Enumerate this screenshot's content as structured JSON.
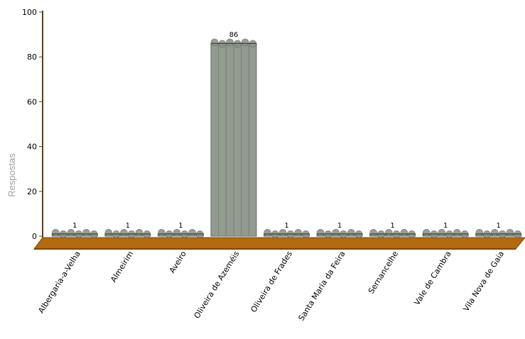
{
  "chart_data": {
    "type": "bar",
    "title": "",
    "xlabel": "",
    "ylabel": "Respostas",
    "ylim": [
      0,
      100
    ],
    "yticks": [
      0,
      20,
      40,
      60,
      80,
      100
    ],
    "grid": false,
    "legend": "none",
    "categories": [
      "Albergaria-a-Velha",
      "Almeirim",
      "Aveiro",
      "Oliveira de Azeméis",
      "Oliveira de Frades",
      "Santa Maria da Feira",
      "Sernancelhe",
      "Vale de Cambra",
      "Vila Nova de Gaia"
    ],
    "series": [
      {
        "values": [
          1,
          1,
          1,
          86,
          1,
          1,
          1,
          1,
          1
        ]
      }
    ],
    "colors": {
      "bar": "#8e958b",
      "bar_edge": "#5d6358",
      "floor": "#b36a10",
      "floor_dark": "#7a4606",
      "axis": "#5a4410",
      "axis_title": "#9aa39a"
    }
  }
}
